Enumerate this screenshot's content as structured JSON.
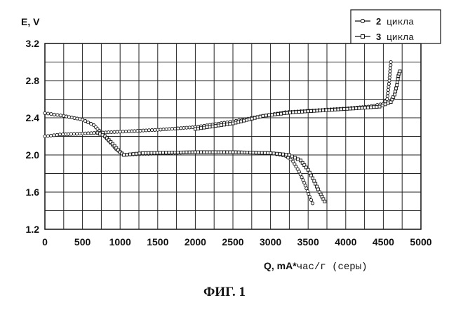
{
  "caption": "ФИГ. 1",
  "chart_data": {
    "type": "line",
    "ylabel": "E,  V",
    "xlabel_main": "Q, mA*",
    "xlabel_unit": "час/г  (серы)",
    "xlim": [
      0,
      5000
    ],
    "ylim": [
      1.2,
      3.2
    ],
    "x_ticks": [
      "0",
      "500",
      "1000",
      "1500",
      "2000",
      "2500",
      "3000",
      "3500",
      "4000",
      "4500",
      "5000"
    ],
    "y_ticks": [
      "1.2",
      "1.6",
      "2.0",
      "2.4",
      "2.8",
      "3.2"
    ],
    "grid": true,
    "legend_position": "top-right",
    "series": [
      {
        "legend_num": "2",
        "legend_word": "цикла",
        "name": "2 цикла",
        "marker": "circle",
        "discharge": [
          [
            0,
            2.45
          ],
          [
            250,
            2.42
          ],
          [
            500,
            2.38
          ],
          [
            650,
            2.32
          ],
          [
            750,
            2.24
          ],
          [
            850,
            2.15
          ],
          [
            950,
            2.06
          ],
          [
            1050,
            2.0
          ],
          [
            1300,
            2.01
          ],
          [
            2000,
            2.03
          ],
          [
            2500,
            2.03
          ],
          [
            3000,
            2.02
          ],
          [
            3200,
            1.99
          ],
          [
            3300,
            1.93
          ],
          [
            3380,
            1.82
          ],
          [
            3450,
            1.7
          ],
          [
            3520,
            1.55
          ],
          [
            3560,
            1.48
          ]
        ],
        "charge": [
          [
            0,
            2.2
          ],
          [
            200,
            2.22
          ],
          [
            500,
            2.23
          ],
          [
            1000,
            2.25
          ],
          [
            1500,
            2.27
          ],
          [
            2000,
            2.3
          ],
          [
            2500,
            2.36
          ],
          [
            2900,
            2.42
          ],
          [
            3200,
            2.46
          ],
          [
            3600,
            2.48
          ],
          [
            4000,
            2.5
          ],
          [
            4300,
            2.52
          ],
          [
            4500,
            2.55
          ],
          [
            4550,
            2.6
          ],
          [
            4580,
            2.8
          ],
          [
            4600,
            3.0
          ]
        ]
      },
      {
        "legend_num": "3",
        "legend_word": "цикла",
        "name": "3 цикла",
        "marker": "square",
        "discharge": [
          [
            700,
            2.24
          ],
          [
            800,
            2.2
          ],
          [
            900,
            2.12
          ],
          [
            1000,
            2.03
          ],
          [
            1050,
            2.0
          ],
          [
            1300,
            2.02
          ],
          [
            2000,
            2.03
          ],
          [
            2500,
            2.03
          ],
          [
            3000,
            2.02
          ],
          [
            3250,
            2.0
          ],
          [
            3400,
            1.94
          ],
          [
            3500,
            1.84
          ],
          [
            3580,
            1.72
          ],
          [
            3650,
            1.6
          ],
          [
            3720,
            1.5
          ]
        ],
        "charge": [
          [
            2000,
            2.28
          ],
          [
            2500,
            2.34
          ],
          [
            2900,
            2.42
          ],
          [
            3300,
            2.46
          ],
          [
            3700,
            2.48
          ],
          [
            4100,
            2.5
          ],
          [
            4450,
            2.52
          ],
          [
            4600,
            2.57
          ],
          [
            4650,
            2.65
          ],
          [
            4680,
            2.75
          ],
          [
            4700,
            2.85
          ],
          [
            4720,
            2.9
          ]
        ]
      }
    ]
  }
}
